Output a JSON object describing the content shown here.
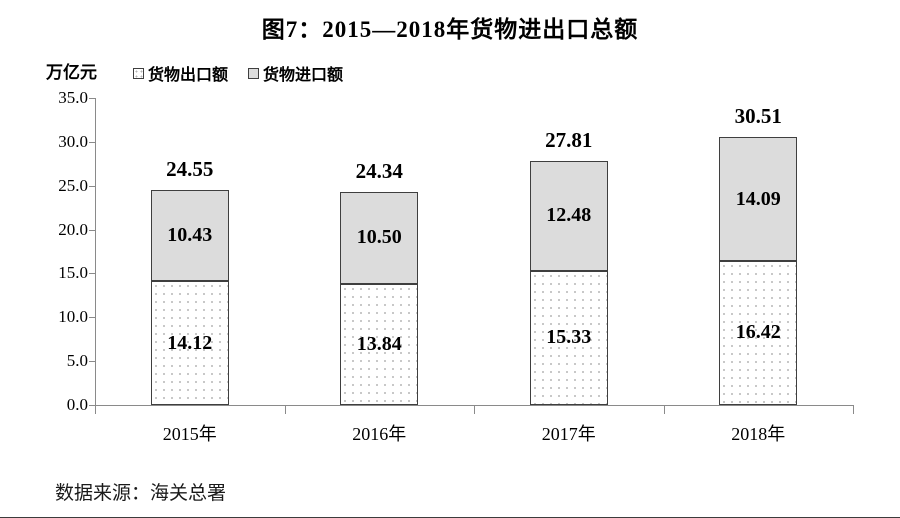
{
  "title": "图7：2015—2018年货物进出口总额",
  "y_unit_label": "万亿元",
  "legend": {
    "export_label": "货物出口额",
    "import_label": "货物进口额"
  },
  "source_note": "数据来源：海关总署",
  "colors": {
    "import_fill": "#dcdcdc",
    "export_fill": "#ffffff",
    "export_dot": "#b5b5b5",
    "bar_border": "#3f3f3f",
    "axis": "#8a8a8a",
    "text": "#000000"
  },
  "chart_data": {
    "type": "bar",
    "stacked": true,
    "title": "图7：2015—2018年货物进出口总额",
    "ylabel": "万亿元",
    "categories": [
      "2015年",
      "2016年",
      "2017年",
      "2018年"
    ],
    "series": [
      {
        "name": "货物出口额",
        "values": [
          14.12,
          13.84,
          15.33,
          16.42
        ]
      },
      {
        "name": "货物进口额",
        "values": [
          10.43,
          10.5,
          12.48,
          14.09
        ]
      }
    ],
    "totals": [
      24.55,
      24.34,
      27.81,
      30.51
    ],
    "ylim": [
      0,
      35
    ],
    "ytick_step": 5,
    "yticks": [
      "0.0",
      "5.0",
      "10.0",
      "15.0",
      "20.0",
      "25.0",
      "30.0",
      "35.0"
    ],
    "grid": false,
    "legend_position": "top-left",
    "source": "数据来源：海关总署"
  }
}
